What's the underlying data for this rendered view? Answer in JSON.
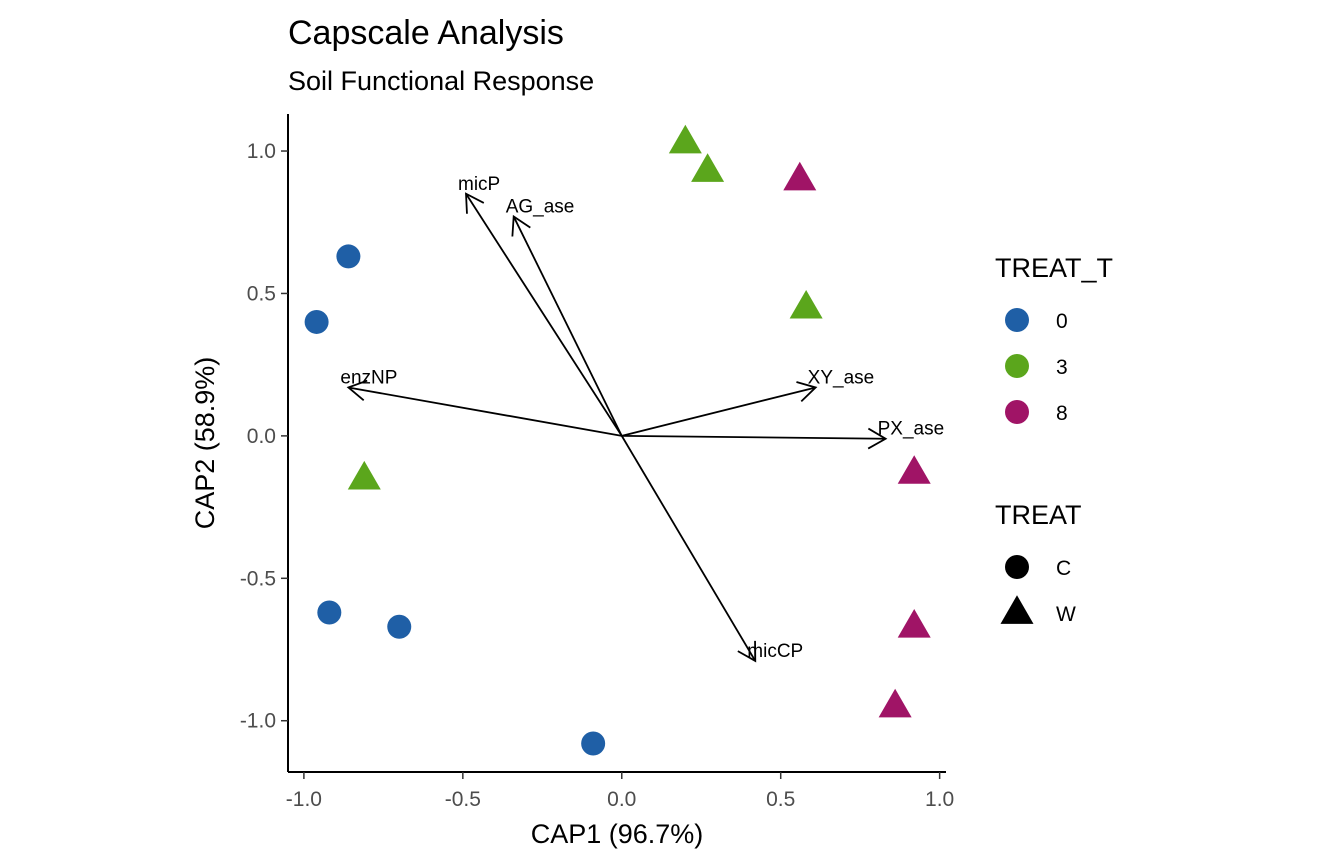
{
  "chart_data": {
    "type": "scatter",
    "title": "Capscale Analysis",
    "subtitle": "Soil Functional Response",
    "xlabel": "CAP1 (96.7%)",
    "ylabel": "CAP2 (58.9%)",
    "xlim": [
      -1.05,
      1.02
    ],
    "ylim": [
      -1.18,
      1.13
    ],
    "xticks": [
      -1.0,
      -0.5,
      0.0,
      0.5,
      1.0
    ],
    "xtick_labels": [
      "-1.0",
      "-0.5",
      "0.0",
      "0.5",
      "1.0"
    ],
    "yticks": [
      -1.0,
      -0.5,
      0.0,
      0.5,
      1.0
    ],
    "ytick_labels": [
      "-1.0",
      "-0.5",
      "0.0",
      "0.5",
      "1.0"
    ],
    "grid": false,
    "legend_position": "right",
    "colors": {
      "0": "#1F5FA6",
      "3": "#5BA61C",
      "8": "#A01466"
    },
    "legend_color": {
      "title": "TREAT_T",
      "items": [
        {
          "label": "0",
          "color": "#1F5FA6"
        },
        {
          "label": "3",
          "color": "#5BA61C"
        },
        {
          "label": "8",
          "color": "#A01466"
        }
      ]
    },
    "legend_shape": {
      "title": "TREAT",
      "items": [
        {
          "label": "C",
          "shape": "circle"
        },
        {
          "label": "W",
          "shape": "triangle"
        }
      ]
    },
    "points": [
      {
        "x": -0.86,
        "y": 0.63,
        "treat_t": "0",
        "treat": "C"
      },
      {
        "x": -0.96,
        "y": 0.4,
        "treat_t": "0",
        "treat": "C"
      },
      {
        "x": -0.92,
        "y": -0.62,
        "treat_t": "0",
        "treat": "C"
      },
      {
        "x": -0.7,
        "y": -0.67,
        "treat_t": "0",
        "treat": "C"
      },
      {
        "x": -0.09,
        "y": -1.08,
        "treat_t": "0",
        "treat": "C"
      },
      {
        "x": 0.2,
        "y": 1.03,
        "treat_t": "3",
        "treat": "W"
      },
      {
        "x": 0.27,
        "y": 0.93,
        "treat_t": "3",
        "treat": "W"
      },
      {
        "x": 0.58,
        "y": 0.45,
        "treat_t": "3",
        "treat": "W"
      },
      {
        "x": -0.81,
        "y": -0.15,
        "treat_t": "3",
        "treat": "W"
      },
      {
        "x": 0.56,
        "y": 0.9,
        "treat_t": "8",
        "treat": "W"
      },
      {
        "x": 0.92,
        "y": -0.13,
        "treat_t": "8",
        "treat": "W"
      },
      {
        "x": 0.92,
        "y": -0.67,
        "treat_t": "8",
        "treat": "W"
      },
      {
        "x": 0.86,
        "y": -0.95,
        "treat_t": "8",
        "treat": "W"
      }
    ],
    "arrows": [
      {
        "name": "micP",
        "x": -0.49,
        "y": 0.85
      },
      {
        "name": "AG_ase",
        "x": -0.34,
        "y": 0.77
      },
      {
        "name": "enzNP",
        "x": -0.86,
        "y": 0.17
      },
      {
        "name": "XY_ase",
        "x": 0.61,
        "y": 0.17
      },
      {
        "name": "PX_ase",
        "x": 0.83,
        "y": -0.01
      },
      {
        "name": "micCP",
        "x": 0.42,
        "y": -0.79
      }
    ]
  }
}
